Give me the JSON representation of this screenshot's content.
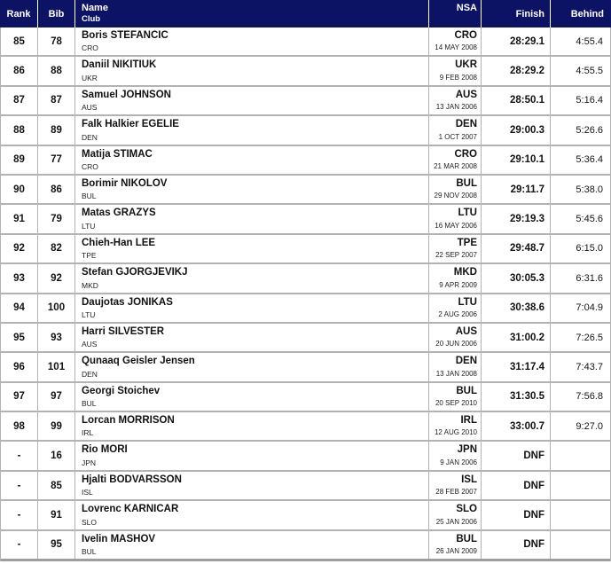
{
  "colors": {
    "header_bg": "#0c1365",
    "header_text": "#ffffff",
    "border": "#b3b3b3",
    "body_text": "#141414"
  },
  "table": {
    "header": {
      "rank": "Rank",
      "bib": "Bib",
      "name": "Name",
      "club": "Club",
      "nsa": "NSA",
      "finish": "Finish",
      "behind": "Behind"
    },
    "rows": [
      {
        "rank": "85",
        "bib": "78",
        "name": "Boris STEFANCIC",
        "club": "CRO",
        "nsa": "CRO",
        "birthdate": "14 MAY 2008",
        "finish": "28:29.1",
        "behind": "4:55.4"
      },
      {
        "rank": "86",
        "bib": "88",
        "name": "Daniil NIKITIUK",
        "club": "UKR",
        "nsa": "UKR",
        "birthdate": "9 FEB 2008",
        "finish": "28:29.2",
        "behind": "4:55.5"
      },
      {
        "rank": "87",
        "bib": "87",
        "name": "Samuel JOHNSON",
        "club": "AUS",
        "nsa": "AUS",
        "birthdate": "13 JAN 2006",
        "finish": "28:50.1",
        "behind": "5:16.4"
      },
      {
        "rank": "88",
        "bib": "89",
        "name": "Falk Halkier EGELIE",
        "club": "DEN",
        "nsa": "DEN",
        "birthdate": "1 OCT 2007",
        "finish": "29:00.3",
        "behind": "5:26.6"
      },
      {
        "rank": "89",
        "bib": "77",
        "name": "Matija STIMAC",
        "club": "CRO",
        "nsa": "CRO",
        "birthdate": "21 MAR 2008",
        "finish": "29:10.1",
        "behind": "5:36.4"
      },
      {
        "rank": "90",
        "bib": "86",
        "name": "Borimir NIKOLOV",
        "club": "BUL",
        "nsa": "BUL",
        "birthdate": "29 NOV 2008",
        "finish": "29:11.7",
        "behind": "5:38.0"
      },
      {
        "rank": "91",
        "bib": "79",
        "name": "Matas GRAZYS",
        "club": "LTU",
        "nsa": "LTU",
        "birthdate": "16 MAY 2006",
        "finish": "29:19.3",
        "behind": "5:45.6"
      },
      {
        "rank": "92",
        "bib": "82",
        "name": "Chieh-Han LEE",
        "club": "TPE",
        "nsa": "TPE",
        "birthdate": "22 SEP 2007",
        "finish": "29:48.7",
        "behind": "6:15.0"
      },
      {
        "rank": "93",
        "bib": "92",
        "name": "Stefan GJORGJEVIKJ",
        "club": "MKD",
        "nsa": "MKD",
        "birthdate": "9 APR 2009",
        "finish": "30:05.3",
        "behind": "6:31.6"
      },
      {
        "rank": "94",
        "bib": "100",
        "name": "Daujotas JONIKAS",
        "club": "LTU",
        "nsa": "LTU",
        "birthdate": "2 AUG 2006",
        "finish": "30:38.6",
        "behind": "7:04.9"
      },
      {
        "rank": "95",
        "bib": "93",
        "name": "Harri SILVESTER",
        "club": "AUS",
        "nsa": "AUS",
        "birthdate": "20 JUN 2006",
        "finish": "31:00.2",
        "behind": "7:26.5"
      },
      {
        "rank": "96",
        "bib": "101",
        "name": "Qunaaq Geisler Jensen",
        "club": "DEN",
        "nsa": "DEN",
        "birthdate": "13 JAN 2008",
        "finish": "31:17.4",
        "behind": "7:43.7"
      },
      {
        "rank": "97",
        "bib": "97",
        "name": "Georgi Stoichev",
        "club": "BUL",
        "nsa": "BUL",
        "birthdate": "20 SEP 2010",
        "finish": "31:30.5",
        "behind": "7:56.8"
      },
      {
        "rank": "98",
        "bib": "99",
        "name": "Lorcan MORRISON",
        "club": "IRL",
        "nsa": "IRL",
        "birthdate": "12 AUG 2010",
        "finish": "33:00.7",
        "behind": "9:27.0"
      },
      {
        "rank": "-",
        "bib": "16",
        "name": "Rio MORI",
        "club": "JPN",
        "nsa": "JPN",
        "birthdate": "9 JAN 2006",
        "finish": "DNF",
        "behind": ""
      },
      {
        "rank": "-",
        "bib": "85",
        "name": "Hjalti BODVARSSON",
        "club": "ISL",
        "nsa": "ISL",
        "birthdate": "28 FEB 2007",
        "finish": "DNF",
        "behind": ""
      },
      {
        "rank": "-",
        "bib": "91",
        "name": "Lovrenc KARNICAR",
        "club": "SLO",
        "nsa": "SLO",
        "birthdate": "25 JAN 2006",
        "finish": "DNF",
        "behind": ""
      },
      {
        "rank": "-",
        "bib": "95",
        "name": "Ivelin MASHOV",
        "club": "BUL",
        "nsa": "BUL",
        "birthdate": "26 JAN 2009",
        "finish": "DNF",
        "behind": ""
      }
    ]
  }
}
